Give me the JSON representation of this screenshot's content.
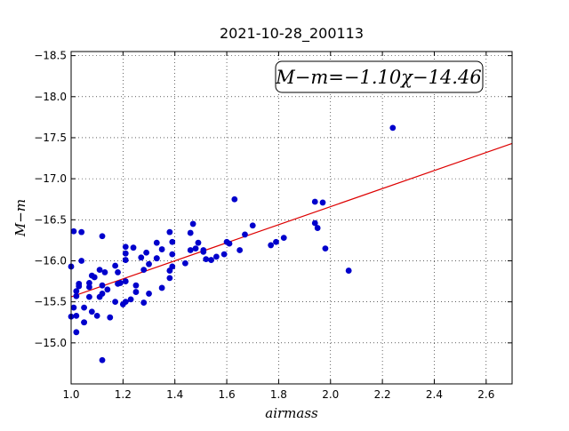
{
  "chart_data": {
    "type": "scatter",
    "title": "2021-10-28_200113",
    "xlabel": "airmass",
    "ylabel": "M−m",
    "xlim": [
      1.0,
      2.7
    ],
    "ylim": [
      -18.55,
      -14.5
    ],
    "y_inverted": true,
    "grid": true,
    "x_ticks": [
      {
        "value": 1.0,
        "label": "1.0"
      },
      {
        "value": 1.2,
        "label": "1.2"
      },
      {
        "value": 1.4,
        "label": "1.4"
      },
      {
        "value": 1.6,
        "label": "1.6"
      },
      {
        "value": 1.8,
        "label": "1.8"
      },
      {
        "value": 2.0,
        "label": "2.0"
      },
      {
        "value": 2.2,
        "label": "2.2"
      },
      {
        "value": 2.4,
        "label": "2.4"
      },
      {
        "value": 2.6,
        "label": "2.6"
      }
    ],
    "y_ticks": [
      {
        "value": -15.0,
        "label": "−15.0"
      },
      {
        "value": -15.5,
        "label": "−15.5"
      },
      {
        "value": -16.0,
        "label": "−16.0"
      },
      {
        "value": -16.5,
        "label": "−16.5"
      },
      {
        "value": -17.0,
        "label": "−17.0"
      },
      {
        "value": -17.5,
        "label": "−17.5"
      },
      {
        "value": -18.0,
        "label": "−18.0"
      },
      {
        "value": -18.5,
        "label": "−18.5"
      }
    ],
    "annotation": "M−m=−1.10χ−14.46",
    "annotation_position": "top-right",
    "fit_line": {
      "slope": -1.1,
      "intercept": -14.46,
      "color": "#dd0000"
    },
    "point_color": "#0000cc",
    "points": [
      [
        1.0,
        -15.32
      ],
      [
        1.0,
        -15.93
      ],
      [
        1.01,
        -16.36
      ],
      [
        1.01,
        -15.43
      ],
      [
        1.02,
        -15.33
      ],
      [
        1.02,
        -15.13
      ],
      [
        1.02,
        -15.57
      ],
      [
        1.02,
        -15.63
      ],
      [
        1.03,
        -15.72
      ],
      [
        1.03,
        -15.69
      ],
      [
        1.04,
        -16.0
      ],
      [
        1.04,
        -16.35
      ],
      [
        1.05,
        -15.43
      ],
      [
        1.05,
        -15.25
      ],
      [
        1.05,
        -15.25
      ],
      [
        1.07,
        -15.56
      ],
      [
        1.07,
        -15.73
      ],
      [
        1.07,
        -15.68
      ],
      [
        1.08,
        -15.82
      ],
      [
        1.08,
        -15.38
      ],
      [
        1.09,
        -15.8
      ],
      [
        1.1,
        -15.33
      ],
      [
        1.11,
        -15.56
      ],
      [
        1.11,
        -15.89
      ],
      [
        1.12,
        -14.79
      ],
      [
        1.12,
        -16.3
      ],
      [
        1.12,
        -15.6
      ],
      [
        1.12,
        -15.7
      ],
      [
        1.13,
        -15.86
      ],
      [
        1.14,
        -15.65
      ],
      [
        1.15,
        -15.31
      ],
      [
        1.17,
        -15.94
      ],
      [
        1.17,
        -15.5
      ],
      [
        1.18,
        -15.86
      ],
      [
        1.18,
        -15.72
      ],
      [
        1.19,
        -15.73
      ],
      [
        1.2,
        -15.47
      ],
      [
        1.21,
        -15.75
      ],
      [
        1.21,
        -15.5
      ],
      [
        1.21,
        -16.01
      ],
      [
        1.21,
        -16.09
      ],
      [
        1.21,
        -16.17
      ],
      [
        1.23,
        -15.53
      ],
      [
        1.24,
        -16.16
      ],
      [
        1.25,
        -15.62
      ],
      [
        1.25,
        -15.7
      ],
      [
        1.27,
        -16.04
      ],
      [
        1.28,
        -15.89
      ],
      [
        1.28,
        -15.49
      ],
      [
        1.29,
        -16.1
      ],
      [
        1.3,
        -15.6
      ],
      [
        1.3,
        -15.96
      ],
      [
        1.33,
        -16.22
      ],
      [
        1.33,
        -16.03
      ],
      [
        1.33,
        -16.03
      ],
      [
        1.35,
        -15.67
      ],
      [
        1.35,
        -16.14
      ],
      [
        1.38,
        -15.79
      ],
      [
        1.38,
        -15.88
      ],
      [
        1.38,
        -16.35
      ],
      [
        1.39,
        -16.08
      ],
      [
        1.39,
        -15.93
      ],
      [
        1.39,
        -16.23
      ],
      [
        1.44,
        -15.97
      ],
      [
        1.46,
        -16.34
      ],
      [
        1.46,
        -16.13
      ],
      [
        1.47,
        -16.45
      ],
      [
        1.48,
        -16.15
      ],
      [
        1.49,
        -16.22
      ],
      [
        1.51,
        -16.13
      ],
      [
        1.51,
        -16.11
      ],
      [
        1.52,
        -16.02
      ],
      [
        1.54,
        -16.01
      ],
      [
        1.56,
        -16.05
      ],
      [
        1.59,
        -16.08
      ],
      [
        1.6,
        -16.23
      ],
      [
        1.61,
        -16.21
      ],
      [
        1.63,
        -16.75
      ],
      [
        1.65,
        -16.13
      ],
      [
        1.67,
        -16.32
      ],
      [
        1.7,
        -16.43
      ],
      [
        1.77,
        -16.19
      ],
      [
        1.79,
        -16.23
      ],
      [
        1.82,
        -16.28
      ],
      [
        1.94,
        -16.46
      ],
      [
        1.94,
        -16.72
      ],
      [
        1.95,
        -16.4
      ],
      [
        1.97,
        -16.71
      ],
      [
        1.98,
        -16.15
      ],
      [
        2.07,
        -15.88
      ],
      [
        2.24,
        -17.62
      ]
    ]
  }
}
